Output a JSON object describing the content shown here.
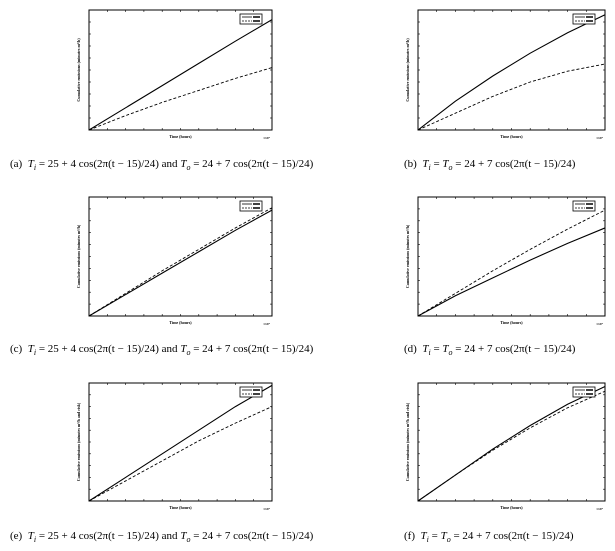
{
  "figure": {
    "panels": [
      {
        "id": "a",
        "caption_prefix": "(a)",
        "caption_parts": [
          "T",
          "i",
          " = 25 + 4 cos(2π(t − 15)/24) and ",
          "T",
          "o",
          " = 24 + 7 cos(2π(t − 15)/24)"
        ],
        "ylabel": "Cumulative emissions (minutes m³/h)",
        "xlabel": "Time (hours)",
        "x_multiplier": "×10⁴",
        "chart_data": {
          "type": "line",
          "x": [
            0,
            0.2,
            0.4,
            0.6,
            0.8,
            1.0
          ],
          "series": [
            {
              "style": "solid",
              "values": [
                0,
                0.185,
                0.37,
                0.555,
                0.74,
                0.92
              ]
            },
            {
              "style": "dashed",
              "values": [
                0,
                0.12,
                0.23,
                0.33,
                0.43,
                0.52
              ]
            }
          ],
          "xlim": [
            0,
            1
          ],
          "ylim": [
            0,
            1
          ],
          "legend": "top-right",
          "grid": false
        }
      },
      {
        "id": "b",
        "caption_prefix": "(b)",
        "caption_parts": [
          "T",
          "i",
          " = ",
          "T",
          "o",
          " = 24 + 7 cos(2π(t − 15)/24)"
        ],
        "ylabel": "Cumulative emissions (minutes m³/h)",
        "xlabel": "Time (hours)",
        "x_multiplier": "×10⁴",
        "chart_data": {
          "type": "line",
          "x": [
            0,
            0.2,
            0.4,
            0.6,
            0.8,
            1.0
          ],
          "series": [
            {
              "style": "solid",
              "values": [
                0,
                0.24,
                0.45,
                0.64,
                0.81,
                0.96
              ]
            },
            {
              "style": "dashed",
              "values": [
                0,
                0.14,
                0.28,
                0.4,
                0.49,
                0.55
              ]
            }
          ],
          "xlim": [
            0,
            1
          ],
          "ylim": [
            0,
            1
          ],
          "legend": "top-right",
          "grid": false
        }
      },
      {
        "id": "c",
        "caption_prefix": "(c)",
        "caption_parts": [
          "T",
          "i",
          " = 25 + 4 cos(2π(t − 15)/24) and ",
          "T",
          "o",
          " = 24 + 7 cos(2π(t − 15)/24)"
        ],
        "ylabel": "Cumulative emissions (minutes m³/h)",
        "xlabel": "Time (hours)",
        "x_multiplier": "×10⁴",
        "chart_data": {
          "type": "line",
          "x": [
            0,
            0.2,
            0.4,
            0.6,
            0.8,
            1.0
          ],
          "series": [
            {
              "style": "solid",
              "values": [
                0,
                0.18,
                0.36,
                0.54,
                0.72,
                0.89
              ]
            },
            {
              "style": "dashed",
              "values": [
                0,
                0.19,
                0.38,
                0.56,
                0.74,
                0.91
              ]
            }
          ],
          "xlim": [
            0,
            1
          ],
          "ylim": [
            0,
            1
          ],
          "legend": "top-right",
          "grid": false
        }
      },
      {
        "id": "d",
        "caption_prefix": "(d)",
        "caption_parts": [
          "T",
          "i",
          " = ",
          "T",
          "o",
          " = 24 + 7 cos(2π(t − 15)/24)"
        ],
        "ylabel": "Cumulative emissions (minutes m³/h)",
        "xlabel": "Time (hours)",
        "x_multiplier": "×10⁴",
        "chart_data": {
          "type": "line",
          "x": [
            0,
            0.2,
            0.4,
            0.6,
            0.8,
            1.0
          ],
          "series": [
            {
              "style": "solid",
              "values": [
                0,
                0.17,
                0.32,
                0.47,
                0.61,
                0.74
              ]
            },
            {
              "style": "dashed",
              "values": [
                0,
                0.19,
                0.38,
                0.56,
                0.73,
                0.89
              ]
            }
          ],
          "xlim": [
            0,
            1
          ],
          "ylim": [
            0,
            1
          ],
          "legend": "top-right",
          "grid": false
        }
      },
      {
        "id": "e",
        "caption_prefix": "(e)",
        "caption_parts": [
          "T",
          "i",
          " = 25 + 4 cos(2π(t − 15)/24) and ",
          "T",
          "o",
          " = 24 + 7 cos(2π(t − 15)/24)"
        ],
        "ylabel": "Cumulative emissions (minutes m³/h and risk)",
        "xlabel": "Time (hours)",
        "x_multiplier": "×10⁴",
        "chart_data": {
          "type": "line",
          "x": [
            0,
            0.2,
            0.4,
            0.6,
            0.8,
            1.0
          ],
          "series": [
            {
              "style": "solid",
              "values": [
                0,
                0.2,
                0.4,
                0.6,
                0.8,
                0.98
              ]
            },
            {
              "style": "dashed",
              "values": [
                0,
                0.17,
                0.34,
                0.51,
                0.66,
                0.8
              ]
            }
          ],
          "xlim": [
            0,
            1
          ],
          "ylim": [
            0,
            1
          ],
          "legend": "top-right",
          "grid": false
        }
      },
      {
        "id": "f",
        "caption_prefix": "(f)",
        "caption_parts": [
          "T",
          "i",
          " = ",
          "T",
          "o",
          " = 24 + 7 cos(2π(t − 15)/24)"
        ],
        "ylabel": "Cumulative emissions (minutes m³/h and risk)",
        "xlabel": "Time (hours)",
        "x_multiplier": "×10⁴",
        "chart_data": {
          "type": "line",
          "x": [
            0,
            0.2,
            0.4,
            0.6,
            0.8,
            1.0
          ],
          "series": [
            {
              "style": "solid",
              "values": [
                0,
                0.22,
                0.44,
                0.64,
                0.82,
                0.97
              ]
            },
            {
              "style": "dashed",
              "values": [
                0,
                0.22,
                0.43,
                0.62,
                0.79,
                0.93
              ]
            }
          ],
          "xlim": [
            0,
            1
          ],
          "ylim": [
            0,
            1
          ],
          "legend": "top-right",
          "grid": false
        }
      }
    ]
  }
}
